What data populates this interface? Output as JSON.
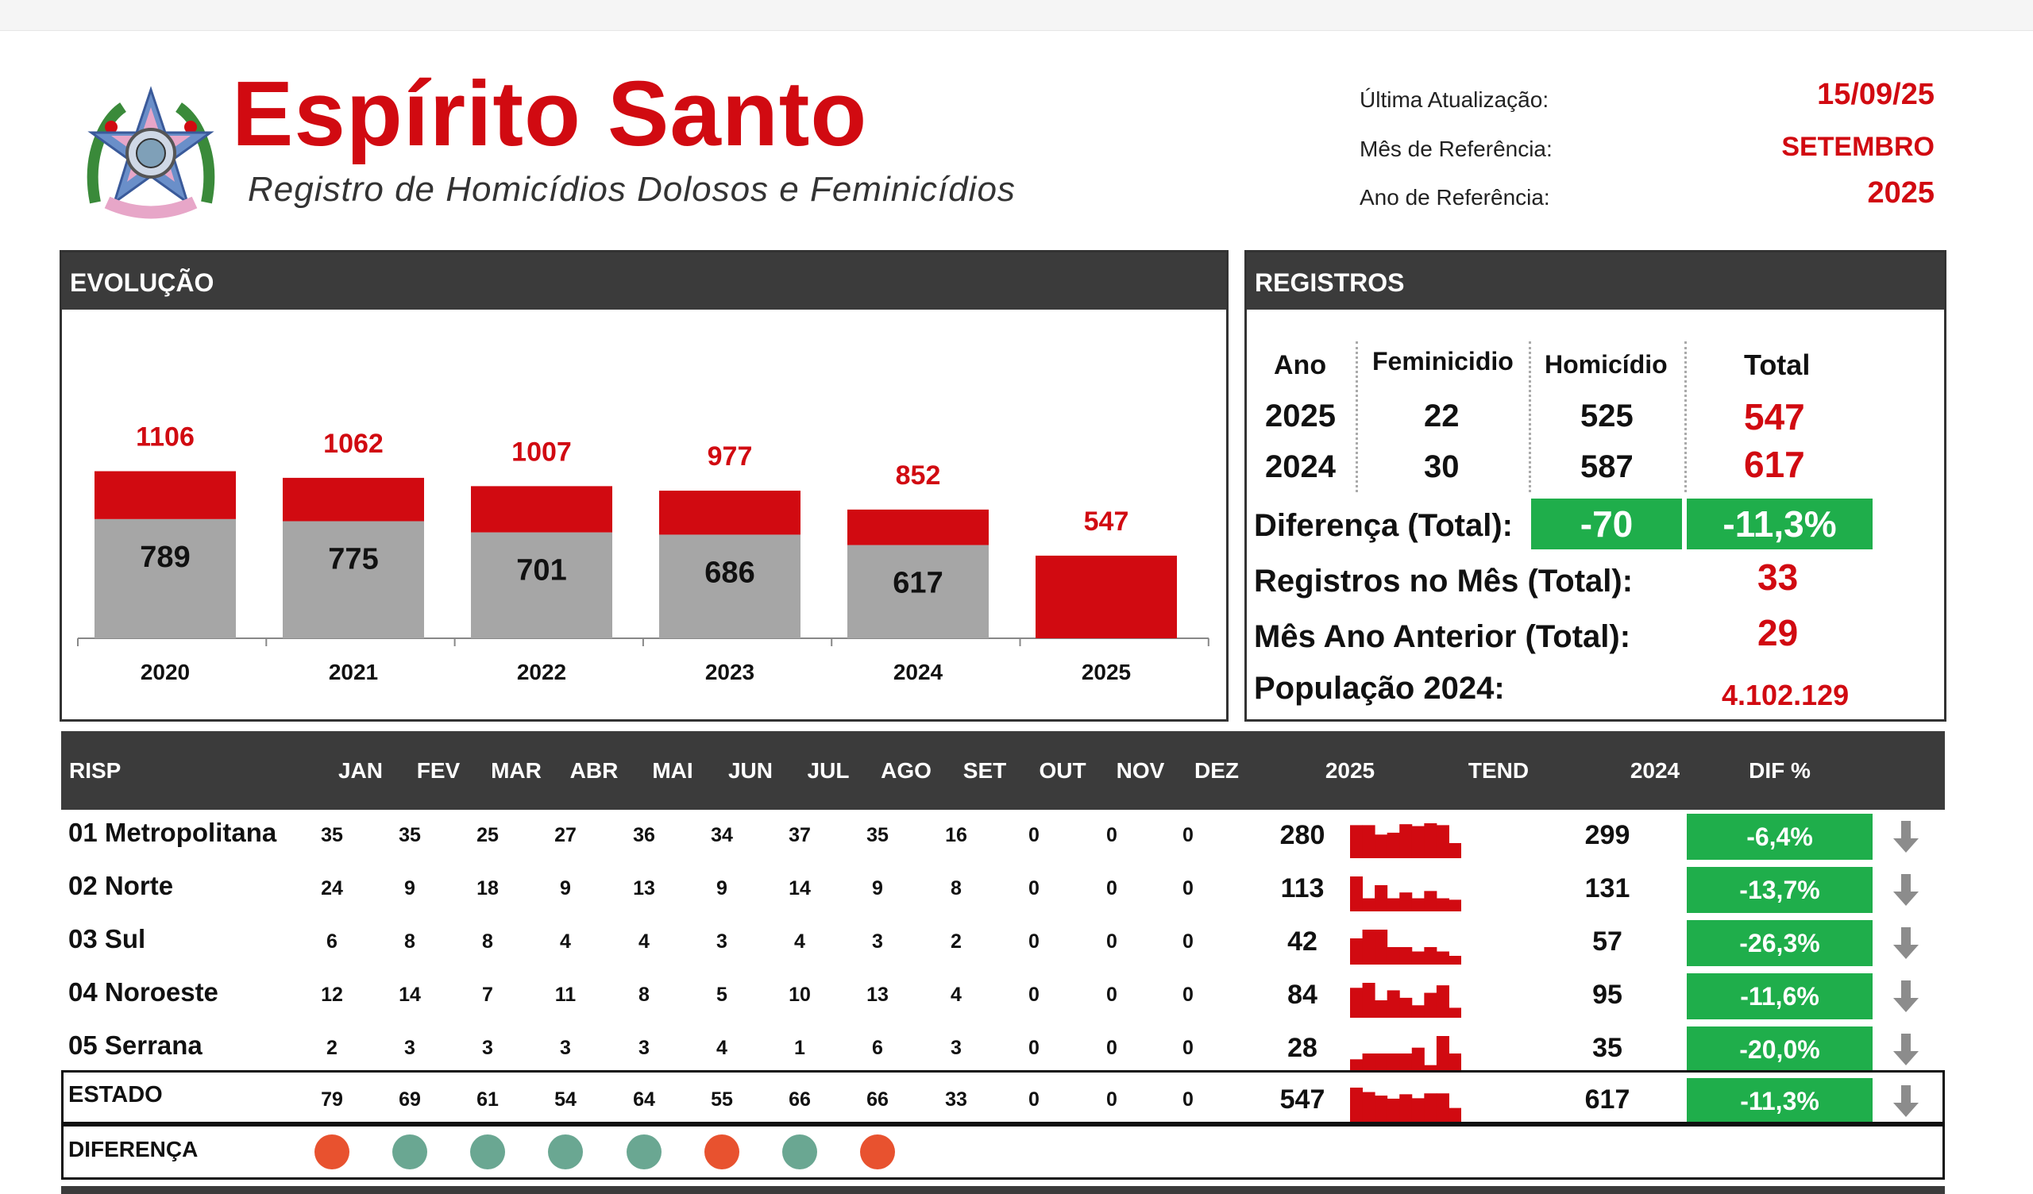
{
  "header": {
    "title": "Espírito Santo",
    "subtitle": "Registro de Homicídios Dolosos e Feminicídios",
    "meta": [
      {
        "label": "Última Atualização:",
        "value": "15/09/25"
      },
      {
        "label": "Mês de Referência:",
        "value": "SETEMBRO"
      },
      {
        "label": "Ano de Referência:",
        "value": "2025"
      }
    ]
  },
  "evolucao": {
    "title": "EVOLUÇÃO"
  },
  "chart_data": {
    "type": "bar",
    "stacked": true,
    "categories": [
      "2020",
      "2021",
      "2022",
      "2023",
      "2024",
      "2025"
    ],
    "totals": [
      1106,
      1062,
      1007,
      977,
      852,
      547
    ],
    "series": [
      {
        "values": [
          789,
          775,
          701,
          686,
          617,
          null
        ],
        "color": "#a6a6a6"
      },
      {
        "values": [
          317,
          287,
          306,
          291,
          235,
          547
        ],
        "color": "#d10a11"
      }
    ],
    "ylim": [
      0,
      1200
    ],
    "grid": false,
    "legend": "none"
  },
  "registros": {
    "title": "REGISTROS",
    "headers": [
      "Ano",
      "Feminicidio",
      "Homicídio",
      "Total"
    ],
    "rows": [
      {
        "ano": "2025",
        "fem": "22",
        "hom": "525",
        "total": "547"
      },
      {
        "ano": "2024",
        "fem": "30",
        "hom": "587",
        "total": "617"
      }
    ],
    "diferenca_label": "Diferença (Total):",
    "diferenca_abs": "-70",
    "diferenca_pct": "-11,3%",
    "mes_label": "Registros no Mês (Total):",
    "mes_value": "33",
    "mes_anterior_label": "Mês Ano Anterior (Total):",
    "mes_anterior_value": "29",
    "populacao_label": "População 2024:",
    "populacao_value": "4.102.129"
  },
  "table": {
    "headers": [
      "RISP",
      "JAN",
      "FEV",
      "MAR",
      "ABR",
      "MAI",
      "JUN",
      "JUL",
      "AGO",
      "SET",
      "OUT",
      "NOV",
      "DEZ",
      "2025",
      "TEND",
      "2024",
      "DIF %"
    ],
    "rows": [
      {
        "name": "01 Metropolitana",
        "months": [
          "35",
          "35",
          "25",
          "27",
          "36",
          "34",
          "37",
          "35",
          "16",
          "0",
          "0",
          "0"
        ],
        "y2025": "280",
        "y2024": "299",
        "dif": "-6,4%",
        "trend": [
          35,
          35,
          25,
          27,
          36,
          34,
          37,
          35,
          16
        ]
      },
      {
        "name": "02 Norte",
        "months": [
          "24",
          "9",
          "18",
          "9",
          "13",
          "9",
          "14",
          "9",
          "8",
          "0",
          "0",
          "0"
        ],
        "y2025": "113",
        "y2024": "131",
        "dif": "-13,7%",
        "trend": [
          24,
          9,
          18,
          9,
          13,
          9,
          14,
          9,
          8
        ]
      },
      {
        "name": "03 Sul",
        "months": [
          "6",
          "8",
          "8",
          "4",
          "4",
          "3",
          "4",
          "3",
          "2",
          "0",
          "0",
          "0"
        ],
        "y2025": "42",
        "y2024": "57",
        "dif": "-26,3%",
        "trend": [
          6,
          8,
          8,
          4,
          4,
          3,
          4,
          3,
          2
        ]
      },
      {
        "name": "04 Noroeste",
        "months": [
          "12",
          "14",
          "7",
          "11",
          "8",
          "5",
          "10",
          "13",
          "4",
          "0",
          "0",
          "0"
        ],
        "y2025": "84",
        "y2024": "95",
        "dif": "-11,6%",
        "trend": [
          12,
          14,
          7,
          11,
          8,
          5,
          10,
          13,
          4
        ]
      },
      {
        "name": "05 Serrana",
        "months": [
          "2",
          "3",
          "3",
          "3",
          "3",
          "4",
          "1",
          "6",
          "3",
          "0",
          "0",
          "0"
        ],
        "y2025": "28",
        "y2024": "35",
        "dif": "-20,0%",
        "trend": [
          2,
          3,
          3,
          3,
          3,
          4,
          1,
          6,
          3
        ]
      }
    ],
    "estado": {
      "name": "ESTADO",
      "months": [
        "79",
        "69",
        "61",
        "54",
        "64",
        "55",
        "66",
        "66",
        "33",
        "0",
        "0",
        "0"
      ],
      "y2025": "547",
      "y2024": "617",
      "dif": "-11,3%",
      "trend": [
        79,
        69,
        61,
        54,
        64,
        55,
        66,
        66,
        33
      ]
    },
    "diferenca": {
      "name": "DIFERENÇA",
      "dots": [
        "up",
        "down",
        "down",
        "down",
        "down",
        "up",
        "down",
        "up"
      ]
    },
    "colors": {
      "up": "#e8522f",
      "down": "#6aa792",
      "green": "#1fae4b",
      "red": "#d10a11"
    }
  }
}
